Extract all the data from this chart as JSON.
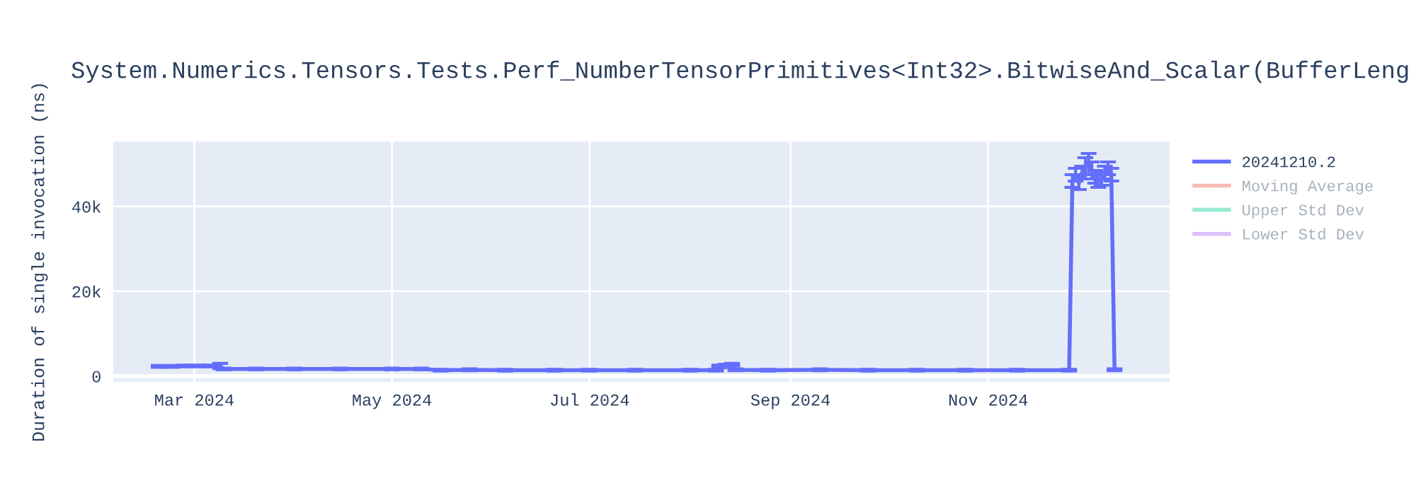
{
  "chart_data": {
    "type": "line",
    "title": "System.Numerics.Tensors.Tests.Perf_NumberTensorPrimitives<Int32>.BitwiseAnd_Scalar(BufferLeng",
    "ylabel": "Duration of single invocation (ns)",
    "x": [
      "2024-02-19",
      "2024-02-23",
      "2024-02-27",
      "2024-03-02",
      "2024-03-06",
      "2024-03-09",
      "2024-03-10",
      "2024-03-20",
      "2024-04-01",
      "2024-04-15",
      "2024-05-01",
      "2024-05-10",
      "2024-05-16",
      "2024-05-25",
      "2024-06-05",
      "2024-06-20",
      "2024-07-01",
      "2024-07-15",
      "2024-08-01",
      "2024-08-09",
      "2024-08-10",
      "2024-08-12",
      "2024-08-14",
      "2024-08-15",
      "2024-08-25",
      "2024-09-10",
      "2024-09-25",
      "2024-10-10",
      "2024-10-25",
      "2024-11-10",
      "2024-11-26",
      "2024-11-27",
      "2024-11-28",
      "2024-11-29",
      "2024-11-30",
      "2024-12-01",
      "2024-12-02",
      "2024-12-03",
      "2024-12-04",
      "2024-12-05",
      "2024-12-06",
      "2024-12-07",
      "2024-12-08",
      "2024-12-09",
      "2024-12-10"
    ],
    "series": [
      {
        "name": "20241210.2",
        "color": "#636efa",
        "values": [
          2300,
          2300,
          2400,
          2400,
          2400,
          2400,
          1700,
          1700,
          1700,
          1700,
          1700,
          1700,
          1400,
          1500,
          1400,
          1400,
          1400,
          1400,
          1400,
          1400,
          2300,
          2500,
          2700,
          1500,
          1400,
          1500,
          1400,
          1400,
          1400,
          1400,
          1400,
          46000,
          47500,
          45500,
          48000,
          49500,
          50000,
          48500,
          47000,
          46000,
          46500,
          48000,
          49000,
          47500,
          1500
        ],
        "errors": [
          200,
          200,
          200,
          200,
          200,
          600,
          200,
          200,
          200,
          200,
          200,
          200,
          200,
          200,
          200,
          200,
          200,
          200,
          200,
          200,
          300,
          300,
          300,
          200,
          200,
          200,
          200,
          200,
          200,
          200,
          200,
          1500,
          1500,
          1500,
          1500,
          2000,
          2500,
          2000,
          1500,
          1500,
          1500,
          1500,
          1500,
          1500,
          200
        ]
      },
      {
        "name": "Moving Average",
        "color": "#ef553b",
        "values": [
          null,
          null,
          null,
          null,
          null,
          null,
          null,
          null,
          null,
          null,
          null,
          null,
          null,
          null,
          null,
          null,
          null,
          null,
          null,
          null,
          null,
          null,
          null,
          null,
          null,
          null,
          null,
          null,
          null,
          null,
          null,
          null,
          null,
          null,
          null,
          null,
          null,
          null,
          null,
          null,
          null,
          null,
          null,
          null,
          null
        ]
      },
      {
        "name": "Upper Std Dev",
        "color": "#00cc96",
        "values": [
          null,
          null,
          null,
          null,
          null,
          null,
          null,
          null,
          null,
          null,
          null,
          null,
          null,
          null,
          null,
          null,
          null,
          null,
          null,
          null,
          null,
          null,
          null,
          null,
          null,
          null,
          null,
          null,
          null,
          null,
          null,
          null,
          null,
          null,
          null,
          null,
          null,
          null,
          null,
          null,
          null,
          null,
          null,
          null,
          null
        ]
      },
      {
        "name": "Lower Std Dev",
        "color": "#ab63fa",
        "values": [
          null,
          null,
          null,
          null,
          null,
          null,
          null,
          null,
          null,
          null,
          null,
          null,
          null,
          null,
          null,
          null,
          null,
          null,
          null,
          null,
          null,
          null,
          null,
          null,
          null,
          null,
          null,
          null,
          null,
          null,
          null,
          null,
          null,
          null,
          null,
          null,
          null,
          null,
          null,
          null,
          null,
          null,
          null,
          null,
          null
        ]
      }
    ],
    "xlim": [
      "2024-02-05",
      "2024-12-27"
    ],
    "xticks": [
      {
        "value": "2024-03-01",
        "label": "Mar 2024"
      },
      {
        "value": "2024-05-01",
        "label": "May 2024"
      },
      {
        "value": "2024-07-01",
        "label": "Jul 2024"
      },
      {
        "value": "2024-09-01",
        "label": "Sep 2024"
      },
      {
        "value": "2024-11-01",
        "label": "Nov 2024"
      }
    ],
    "ylim": [
      -1300,
      55300
    ],
    "yticks": [
      0,
      {
        "value": 20000,
        "label": "20k"
      },
      {
        "value": 40000,
        "label": "40k"
      }
    ],
    "grid": true,
    "legend": "top right",
    "marker": "none",
    "line_style": "solid"
  }
}
